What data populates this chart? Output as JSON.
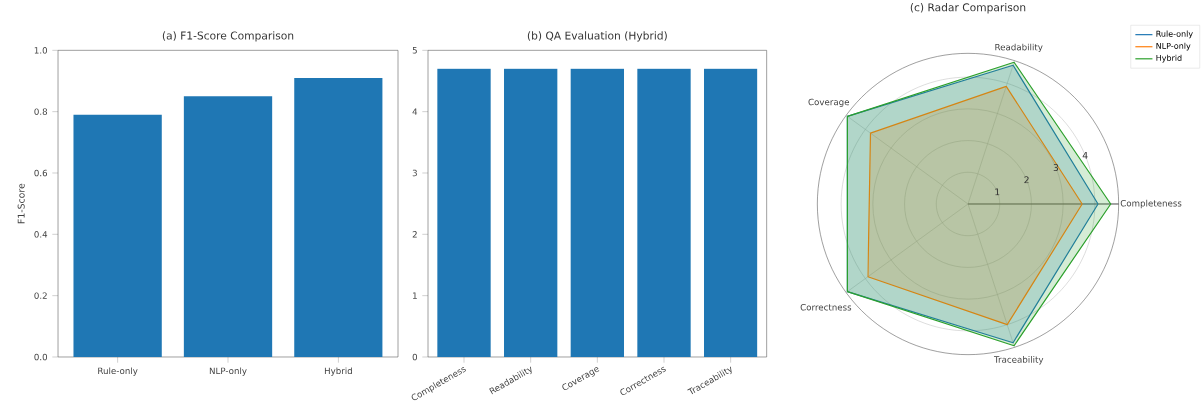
{
  "chart_data": [
    {
      "type": "bar",
      "title": "(a) F1-Score Comparison",
      "ylabel": "F1-Score",
      "categories": [
        "Rule-only",
        "NLP-only",
        "Hybrid"
      ],
      "values": [
        0.79,
        0.85,
        0.91
      ],
      "color": "#1f77b4",
      "ylim": [
        0,
        1
      ],
      "yticks": [
        {
          "value": 0,
          "label": "0.0"
        },
        {
          "value": 0.2,
          "label": "0.2"
        },
        {
          "value": 0.4,
          "label": "0.4"
        },
        {
          "value": 0.6,
          "label": "0.6"
        },
        {
          "value": 0.8,
          "label": "0.8"
        },
        {
          "value": 1,
          "label": "1.0"
        }
      ]
    },
    {
      "type": "bar",
      "title": "(b) QA Evaluation (Hybrid)",
      "categories": [
        "Completeness",
        "Readability",
        "Coverage",
        "Correctness",
        "Traceability"
      ],
      "values": [
        4.7,
        4.7,
        4.7,
        4.7,
        4.7
      ],
      "color": "#1f77b4",
      "ylim": [
        0,
        5
      ],
      "yticks": [
        0,
        1,
        2,
        3,
        4,
        5
      ]
    },
    {
      "type": "radar",
      "title": "(c) Radar Comparison",
      "categories": [
        "Readability",
        "Completeness",
        "Traceability",
        "Correctness",
        "Coverage"
      ],
      "ylim": [
        0,
        4.75
      ],
      "yticks": [
        1,
        2,
        3,
        4
      ],
      "grid": true,
      "legend": "top right",
      "series": [
        {
          "name": "Rule-only",
          "color": "#1f77b4",
          "values": [
            4.6,
            4.1,
            4.6,
            4.7,
            4.7
          ]
        },
        {
          "name": "NLP-only",
          "color": "#ff7f0e",
          "values": [
            3.9,
            3.6,
            4.0,
            3.9,
            3.8
          ]
        },
        {
          "name": "Hybrid",
          "color": "#2ca02c",
          "values": [
            4.7,
            4.5,
            4.7,
            4.7,
            4.7
          ]
        }
      ]
    }
  ]
}
